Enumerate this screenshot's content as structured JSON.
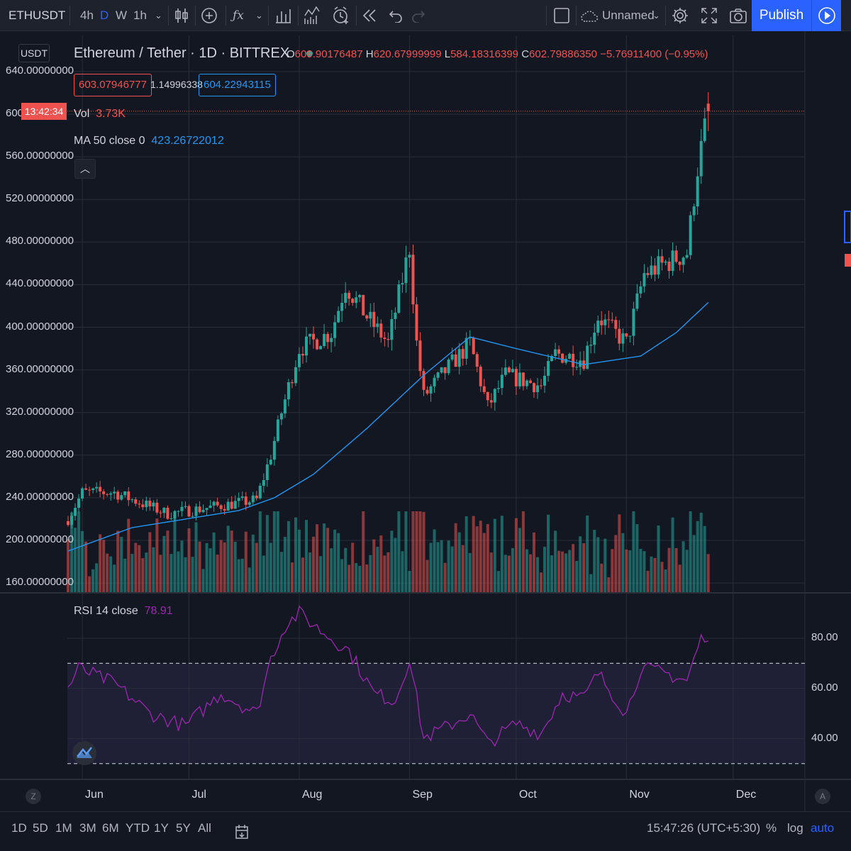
{
  "toolbar": {
    "symbol": "ETHUSDT",
    "intervals": [
      "4h",
      "D",
      "W",
      "1h"
    ],
    "active_interval": "D",
    "layout_name": "Unnamed",
    "publish_label": "Publish"
  },
  "legend": {
    "title": "Ethereum / Tether · 1D · BITTREX",
    "o_label": "O",
    "o": "609.90176487",
    "h_label": "H",
    "h": "620.67999999",
    "l_label": "L",
    "l": "584.18316399",
    "c_label": "C",
    "c": "602.79886350",
    "change": "−5.76911400 (−0.95%)",
    "bid": "603.07946777",
    "spread": "1.14996338",
    "ask": "604.22943115",
    "vol_label": "Vol",
    "vol": "3.73K",
    "ma_label": "MA 50 close 0",
    "ma": "423.26722012",
    "rsi_label": "RSI 14 close",
    "rsi": "78.91"
  },
  "axis": {
    "currency": "USDT",
    "price_labels": [
      "640.00000000",
      "600",
      "560.00000000",
      "520.00000000",
      "480.00000000",
      "440.00000000",
      "400.00000000",
      "360.00000000",
      "320.00000000",
      "280.00000000",
      "240.00000000",
      "200.00000000",
      "160.00000000"
    ],
    "countdown": "13:42:34",
    "rsi_labels": [
      "80.00",
      "60.00",
      "40.00"
    ],
    "x_labels": [
      "Jun",
      "Jul",
      "Aug",
      "Sep",
      "Oct",
      "Nov",
      "Dec"
    ]
  },
  "bottom": {
    "ranges": [
      "1D",
      "5D",
      "1M",
      "3M",
      "6M",
      "YTD",
      "1Y",
      "5Y",
      "All"
    ],
    "clock": "15:47:26 (UTC+5:30)",
    "percent_label": "%",
    "log_label": "log",
    "auto_label": "auto",
    "left_corner": "Z",
    "right_corner": "A"
  },
  "colors": {
    "up": "#26a69a",
    "down": "#ef5350",
    "ma": "#2196f3",
    "rsi": "#9c27b0",
    "accent": "#2962ff"
  },
  "chart_data": [
    {
      "type": "candlestick",
      "title": "Ethereum / Tether · 1D · BITTREX",
      "x_range": [
        "2020-05-28",
        "2020-11-24"
      ],
      "ylim": [
        150,
        650
      ],
      "grid": true,
      "waypoints": [
        {
          "date": "2020-05-28",
          "close": 220
        },
        {
          "date": "2020-06-01",
          "close": 245
        },
        {
          "date": "2020-06-10",
          "close": 245
        },
        {
          "date": "2020-06-25",
          "close": 225
        },
        {
          "date": "2020-07-05",
          "close": 230
        },
        {
          "date": "2020-07-20",
          "close": 238
        },
        {
          "date": "2020-07-24",
          "close": 280
        },
        {
          "date": "2020-07-27",
          "close": 320
        },
        {
          "date": "2020-08-01",
          "close": 380
        },
        {
          "date": "2020-08-10",
          "close": 395
        },
        {
          "date": "2020-08-14",
          "close": 440
        },
        {
          "date": "2020-08-20",
          "close": 410
        },
        {
          "date": "2020-08-26",
          "close": 385
        },
        {
          "date": "2020-09-01",
          "close": 475
        },
        {
          "date": "2020-09-03",
          "close": 385
        },
        {
          "date": "2020-09-05",
          "close": 335
        },
        {
          "date": "2020-09-10",
          "close": 355
        },
        {
          "date": "2020-09-18",
          "close": 385
        },
        {
          "date": "2020-09-23",
          "close": 325
        },
        {
          "date": "2020-09-28",
          "close": 355
        },
        {
          "date": "2020-10-08",
          "close": 345
        },
        {
          "date": "2020-10-12",
          "close": 375
        },
        {
          "date": "2020-10-20",
          "close": 370
        },
        {
          "date": "2020-10-24",
          "close": 410
        },
        {
          "date": "2020-11-01",
          "close": 385
        },
        {
          "date": "2020-11-06",
          "close": 450
        },
        {
          "date": "2020-11-12",
          "close": 460
        },
        {
          "date": "2020-11-18",
          "close": 470
        },
        {
          "date": "2020-11-21",
          "close": 550
        },
        {
          "date": "2020-11-24",
          "close": 602.8
        }
      ],
      "ma50_waypoints": [
        {
          "date": "2020-05-28",
          "value": 190
        },
        {
          "date": "2020-06-15",
          "value": 212
        },
        {
          "date": "2020-07-15",
          "value": 228
        },
        {
          "date": "2020-07-25",
          "value": 240
        },
        {
          "date": "2020-08-05",
          "value": 262
        },
        {
          "date": "2020-08-20",
          "value": 305
        },
        {
          "date": "2020-09-05",
          "value": 355
        },
        {
          "date": "2020-09-18",
          "value": 391
        },
        {
          "date": "2020-10-01",
          "value": 380
        },
        {
          "date": "2020-10-20",
          "value": 365
        },
        {
          "date": "2020-11-05",
          "value": 373
        },
        {
          "date": "2020-11-15",
          "value": 395
        },
        {
          "date": "2020-11-24",
          "value": 423.27
        }
      ],
      "last": {
        "open": 609.90176487,
        "high": 620.67999999,
        "low": 584.18316399,
        "close": 602.7988635
      }
    },
    {
      "type": "line",
      "title": "RSI 14 close",
      "ylim": [
        20,
        95
      ],
      "bands": [
        30,
        70
      ],
      "waypoints": [
        {
          "date": "2020-05-28",
          "value": 60
        },
        {
          "date": "2020-05-31",
          "value": 68
        },
        {
          "date": "2020-06-10",
          "value": 62
        },
        {
          "date": "2020-06-20",
          "value": 50
        },
        {
          "date": "2020-06-30",
          "value": 45
        },
        {
          "date": "2020-07-10",
          "value": 58
        },
        {
          "date": "2020-07-20",
          "value": 50
        },
        {
          "date": "2020-07-24",
          "value": 72
        },
        {
          "date": "2020-07-28",
          "value": 85
        },
        {
          "date": "2020-08-01",
          "value": 90
        },
        {
          "date": "2020-08-08",
          "value": 82
        },
        {
          "date": "2020-08-15",
          "value": 75
        },
        {
          "date": "2020-08-22",
          "value": 58
        },
        {
          "date": "2020-08-28",
          "value": 55
        },
        {
          "date": "2020-09-01",
          "value": 72
        },
        {
          "date": "2020-09-05",
          "value": 40
        },
        {
          "date": "2020-09-12",
          "value": 45
        },
        {
          "date": "2020-09-18",
          "value": 50
        },
        {
          "date": "2020-09-23",
          "value": 38
        },
        {
          "date": "2020-10-01",
          "value": 46
        },
        {
          "date": "2020-10-08",
          "value": 42
        },
        {
          "date": "2020-10-14",
          "value": 58
        },
        {
          "date": "2020-10-20",
          "value": 56
        },
        {
          "date": "2020-10-24",
          "value": 66
        },
        {
          "date": "2020-11-01",
          "value": 50
        },
        {
          "date": "2020-11-05",
          "value": 68
        },
        {
          "date": "2020-11-12",
          "value": 66
        },
        {
          "date": "2020-11-18",
          "value": 63
        },
        {
          "date": "2020-11-22",
          "value": 80
        },
        {
          "date": "2020-11-24",
          "value": 78.91
        }
      ]
    }
  ]
}
